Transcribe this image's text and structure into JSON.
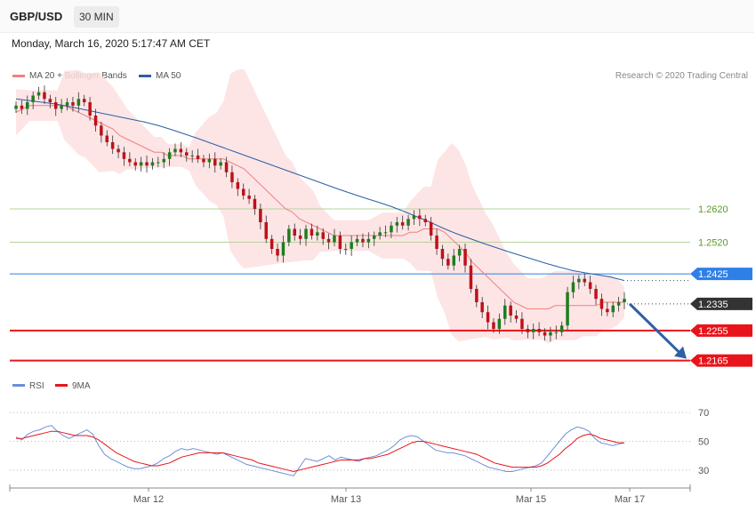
{
  "header": {
    "symbol": "GBP/USD",
    "timeframe": "30 MIN"
  },
  "datetime": "Monday, March 16, 2020 5:17:47 AM CET",
  "legend": {
    "ma20": "MA 20 + Bollinger Bands",
    "ma50": "MA 50",
    "credit": "Research © 2020 Trading Central"
  },
  "colors": {
    "ma20": "#f08080",
    "ma50": "#2b5fa6",
    "bollinger": "#fde0e0",
    "bull": "#1e7d1e",
    "bear": "#c0101a",
    "support": "#e8141a",
    "resistance": "#2f7fe8",
    "target_arrow": "#2f5fa6",
    "rsi": "#6d8fd8",
    "rsi_ma": "#e8141a"
  },
  "chart_data": [
    {
      "type": "candlestick",
      "title": "GBP/USD 30 MIN",
      "x_labels": [
        "Mar 12",
        "Mar 13",
        "Mar 15",
        "Mar 17"
      ],
      "ylim": [
        1.214,
        1.298
      ],
      "last_price": 1.2335,
      "levels": [
        {
          "value": 1.262,
          "label": "1.2620",
          "kind": "resistance-minor"
        },
        {
          "value": 1.252,
          "label": "1.2520",
          "kind": "resistance-minor"
        },
        {
          "value": 1.2425,
          "label": "1.2425",
          "kind": "resistance"
        },
        {
          "value": 1.2335,
          "label": "1.2335",
          "kind": "last"
        },
        {
          "value": 1.2255,
          "label": "1.2255",
          "kind": "support"
        },
        {
          "value": 1.2165,
          "label": "1.2165",
          "kind": "support"
        }
      ],
      "price_path": [
        1.293,
        1.292,
        1.294,
        1.296,
        1.297,
        1.295,
        1.294,
        1.292,
        1.293,
        1.294,
        1.293,
        1.295,
        1.294,
        1.29,
        1.287,
        1.284,
        1.282,
        1.28,
        1.279,
        1.277,
        1.276,
        1.275,
        1.276,
        1.275,
        1.276,
        1.276,
        1.277,
        1.279,
        1.28,
        1.279,
        1.278,
        1.278,
        1.277,
        1.276,
        1.277,
        1.275,
        1.276,
        1.273,
        1.27,
        1.268,
        1.266,
        1.265,
        1.262,
        1.258,
        1.253,
        1.25,
        1.248,
        1.252,
        1.256,
        1.254,
        1.253,
        1.256,
        1.254,
        1.255,
        1.253,
        1.252,
        1.254,
        1.25,
        1.25,
        1.252,
        1.253,
        1.252,
        1.253,
        1.254,
        1.255,
        1.255,
        1.257,
        1.258,
        1.257,
        1.259,
        1.26,
        1.259,
        1.258,
        1.254,
        1.25,
        1.247,
        1.245,
        1.248,
        1.25,
        1.245,
        1.238,
        1.234,
        1.231,
        1.228,
        1.226,
        1.229,
        1.233,
        1.23,
        1.229,
        1.226,
        1.225,
        1.226,
        1.225,
        1.224,
        1.225,
        1.225,
        1.227,
        1.237,
        1.24,
        1.241,
        1.24,
        1.238,
        1.235,
        1.232,
        1.231,
        1.233,
        1.234,
        1.235
      ],
      "ma20_path": [
        1.291,
        1.292,
        1.293,
        1.293,
        1.293,
        1.293,
        1.293,
        1.293,
        1.292,
        1.291,
        1.29,
        1.289,
        1.288,
        1.287,
        1.286,
        1.284,
        1.283,
        1.282,
        1.281,
        1.28,
        1.279,
        1.279,
        1.278,
        1.278,
        1.278,
        1.277,
        1.277,
        1.277,
        1.277,
        1.277,
        1.277,
        1.276,
        1.275,
        1.274,
        1.272,
        1.27,
        1.268,
        1.266,
        1.264,
        1.262,
        1.261,
        1.259,
        1.258,
        1.257,
        1.256,
        1.255,
        1.254,
        1.254,
        1.254,
        1.254,
        1.254,
        1.254,
        1.254,
        1.254,
        1.254,
        1.254,
        1.254,
        1.255,
        1.255,
        1.256,
        1.256,
        1.256,
        1.255,
        1.253,
        1.251,
        1.249,
        1.246,
        1.244,
        1.242,
        1.24,
        1.238,
        1.236,
        1.234,
        1.233,
        1.232,
        1.232,
        1.232,
        1.232,
        1.233,
        1.233,
        1.233,
        1.233,
        1.233,
        1.233,
        1.233,
        1.234,
        1.234,
        1.234,
        1.234
      ],
      "ma50_path": [
        1.295,
        1.2945,
        1.294,
        1.2935,
        1.2928,
        1.292,
        1.2912,
        1.2904,
        1.2896,
        1.2888,
        1.288,
        1.287,
        1.2858,
        1.2845,
        1.2832,
        1.2818,
        1.2804,
        1.279,
        1.2776,
        1.2762,
        1.2748,
        1.2734,
        1.272,
        1.2706,
        1.2692,
        1.2678,
        1.2665,
        1.2652,
        1.264,
        1.2627,
        1.2612,
        1.2596,
        1.258,
        1.2562,
        1.2546,
        1.2532,
        1.2518,
        1.2505,
        1.2492,
        1.248,
        1.2468,
        1.2456,
        1.2445,
        1.2435,
        1.2428,
        1.2422,
        1.2415,
        1.2405
      ],
      "forecast_arrow": {
        "from": 1.2335,
        "to": 1.2165
      }
    },
    {
      "type": "line",
      "title": "RSI",
      "series": [
        {
          "name": "RSI",
          "values": [
            53,
            51,
            55,
            57,
            58,
            60,
            61,
            57,
            54,
            52,
            54,
            56,
            58,
            55,
            47,
            41,
            38,
            36,
            34,
            32,
            31,
            31,
            32,
            33,
            35,
            38,
            40,
            43,
            45,
            44,
            45,
            44,
            43,
            42,
            41,
            42,
            40,
            38,
            36,
            34,
            33,
            32,
            31,
            30,
            29,
            28,
            27,
            26,
            32,
            38,
            37,
            36,
            38,
            40,
            37,
            39,
            38,
            37,
            36,
            38,
            39,
            40,
            42,
            44,
            47,
            51,
            53,
            54,
            53,
            50,
            47,
            44,
            43,
            42,
            42,
            41,
            40,
            38,
            36,
            34,
            32,
            31,
            30,
            29,
            29,
            30,
            31,
            32,
            33,
            35,
            40,
            45,
            50,
            55,
            58,
            60,
            59,
            57,
            52,
            49,
            48,
            47,
            48,
            49
          ]
        },
        {
          "name": "9MA",
          "values": [
            52,
            52,
            53,
            54,
            55,
            56,
            57,
            57,
            56,
            55,
            54,
            54,
            54,
            53,
            51,
            48,
            45,
            42,
            40,
            38,
            36,
            35,
            34,
            33,
            33,
            34,
            35,
            37,
            39,
            40,
            41,
            42,
            42,
            42,
            42,
            42,
            41,
            40,
            39,
            38,
            37,
            35,
            34,
            33,
            32,
            31,
            30,
            29,
            30,
            31,
            32,
            33,
            34,
            35,
            36,
            37,
            37,
            37,
            37,
            38,
            38,
            39,
            40,
            41,
            43,
            45,
            47,
            49,
            50,
            50,
            49,
            48,
            47,
            46,
            45,
            44,
            43,
            42,
            41,
            39,
            37,
            35,
            34,
            33,
            32,
            32,
            32,
            32,
            32,
            33,
            35,
            38,
            41,
            45,
            48,
            52,
            54,
            55,
            54,
            52,
            51,
            50,
            49,
            49
          ]
        }
      ],
      "yticks": [
        70,
        50,
        30
      ],
      "ylim": [
        20,
        80
      ]
    }
  ]
}
